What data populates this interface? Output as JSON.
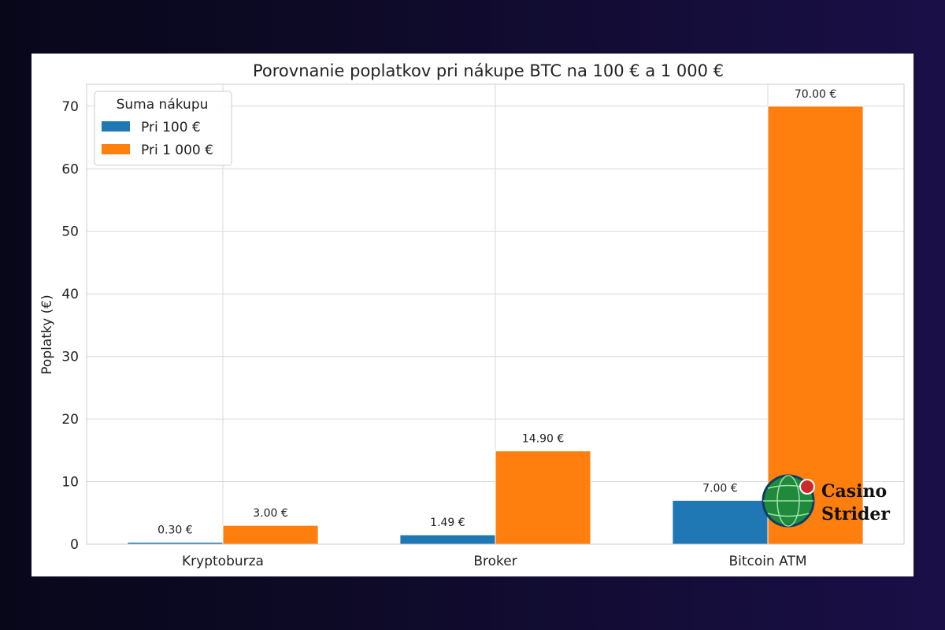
{
  "chart_data": {
    "type": "bar",
    "title": "Porovnanie poplatkov pri nákupe BTC na 100 € a 1 000 €",
    "xlabel": "",
    "ylabel": "Poplatky (€)",
    "categories": [
      "Kryptoburza",
      "Broker",
      "Bitcoin ATM"
    ],
    "ylim": [
      0,
      73.5
    ],
    "yticks": [
      0,
      10,
      20,
      30,
      40,
      50,
      60,
      70
    ],
    "grid": true,
    "legend": {
      "title": "Suma nákupu",
      "placement": "top-left"
    },
    "series": [
      {
        "name": "Pri 100 €",
        "color": "#1f77b4",
        "values": [
          0.3,
          1.49,
          7.0
        ],
        "labels": [
          "0.30 €",
          "1.49 €",
          "7.00 €"
        ]
      },
      {
        "name": "Pri 1 000 €",
        "color": "#ff7f0e",
        "values": [
          3.0,
          14.9,
          70.0
        ],
        "labels": [
          "3.00 €",
          "14.90 €",
          "70.00 €"
        ]
      }
    ]
  },
  "watermark": {
    "line1": "Casino",
    "line2": "Strider",
    "icon": "globe-icon"
  }
}
